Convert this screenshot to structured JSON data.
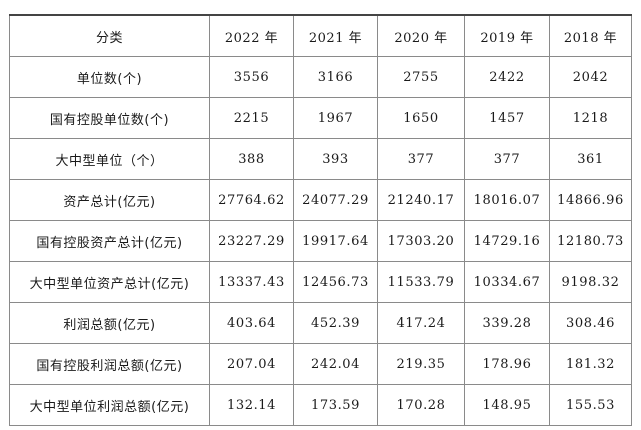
{
  "table": {
    "header": {
      "category": "分类",
      "years": [
        "2022 年",
        "2021 年",
        "2020 年",
        "2019 年",
        "2018 年"
      ]
    },
    "rows": [
      {
        "label": "单位数(个)",
        "values": [
          "3556",
          "3166",
          "2755",
          "2422",
          "2042"
        ]
      },
      {
        "label": "国有控股单位数(个)",
        "values": [
          "2215",
          "1967",
          "1650",
          "1457",
          "1218"
        ]
      },
      {
        "label": "大中型单位（个）",
        "values": [
          "388",
          "393",
          "377",
          "377",
          "361"
        ]
      },
      {
        "label": "资产总计(亿元)",
        "values": [
          "27764.62",
          "24077.29",
          "21240.17",
          "18016.07",
          "14866.96"
        ]
      },
      {
        "label": "国有控股资产总计(亿元)",
        "values": [
          "23227.29",
          "19917.64",
          "17303.20",
          "14729.16",
          "12180.73"
        ]
      },
      {
        "label": "大中型单位资产总计(亿元)",
        "values": [
          "13337.43",
          "12456.73",
          "11533.79",
          "10334.67",
          "9198.32"
        ]
      },
      {
        "label": "利润总额(亿元)",
        "values": [
          "403.64",
          "452.39",
          "417.24",
          "339.28",
          "308.46"
        ]
      },
      {
        "label": "国有控股利润总额(亿元)",
        "values": [
          "207.04",
          "242.04",
          "219.35",
          "178.96",
          "181.32"
        ]
      },
      {
        "label": "大中型单位利润总额(亿元)",
        "values": [
          "132.14",
          "173.59",
          "170.28",
          "148.95",
          "155.53"
        ]
      }
    ]
  }
}
